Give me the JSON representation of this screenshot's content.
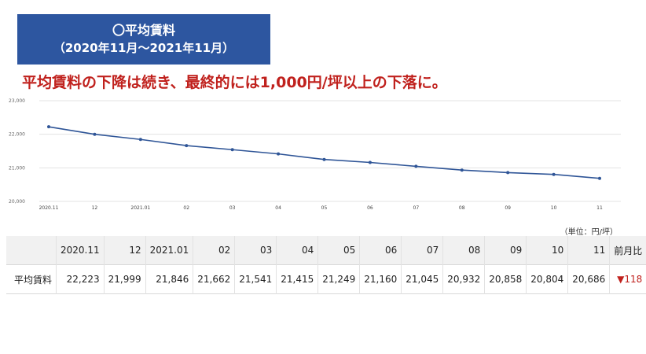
{
  "title_box": {
    "line1": "〇平均賃料",
    "line2": "（2020年11月～2021年11月）"
  },
  "headline": "平均賃料の下降は続き、最終的には1,000円/坪以上の下落に。",
  "unit_note": "（単位：円/坪）",
  "chart_data": {
    "type": "line",
    "categories": [
      "2020.11",
      "12",
      "2021.01",
      "02",
      "03",
      "04",
      "05",
      "06",
      "07",
      "08",
      "09",
      "10",
      "11"
    ],
    "series": [
      {
        "values": [
          22223,
          21999,
          21846,
          21662,
          21541,
          21415,
          21249,
          21160,
          21045,
          20932,
          20858,
          20804,
          20686
        ],
        "color": "#2f5597"
      }
    ],
    "y_ticks": [
      "20,000",
      "21,000",
      "22,000",
      "23,000"
    ],
    "ylim": [
      20000,
      23000
    ],
    "grid": true,
    "markers": true
  },
  "table": {
    "headers": [
      "",
      "2020.11",
      "12",
      "2021.01",
      "02",
      "03",
      "04",
      "05",
      "06",
      "07",
      "08",
      "09",
      "10",
      "11",
      "前月比"
    ],
    "row_label": "平均賃料",
    "row_values": [
      "22,223",
      "21,999",
      "21,846",
      "21,662",
      "21,541",
      "21,415",
      "21,249",
      "21,160",
      "21,045",
      "20,932",
      "20,858",
      "20,804",
      "20,686"
    ],
    "change_arrow": "▼",
    "change_value": "118",
    "change_color": "#c0211d"
  }
}
